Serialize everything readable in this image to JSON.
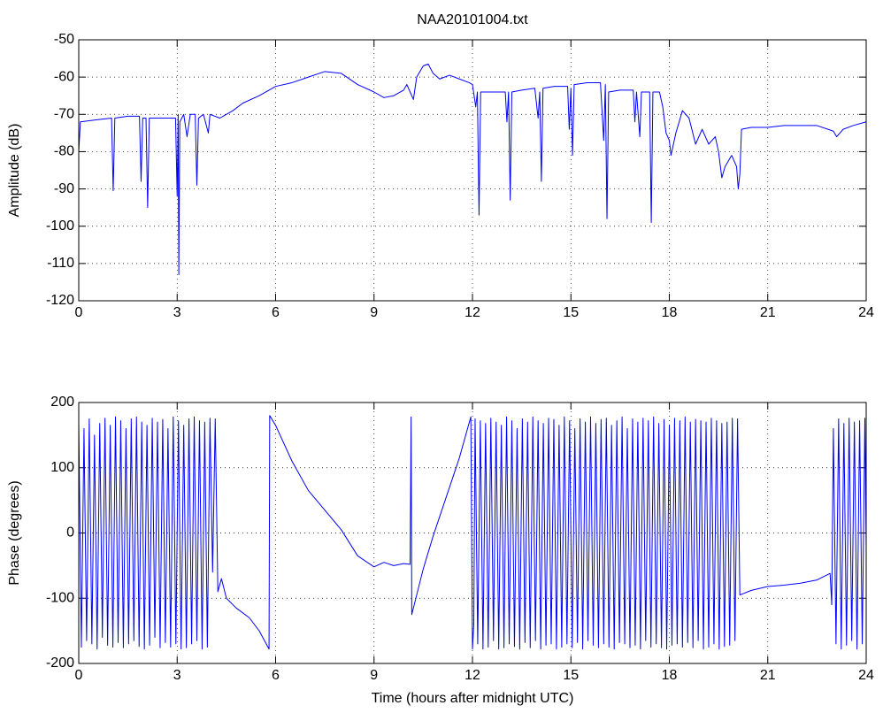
{
  "chart_data": [
    {
      "type": "line",
      "title": "NAA20101004.txt",
      "ylabel": "Amplitude (dB)",
      "color": "#0000ff",
      "grid": true,
      "xlim": [
        0,
        24
      ],
      "ylim": [
        -120,
        -50
      ],
      "xticks": [
        0,
        3,
        6,
        9,
        12,
        15,
        18,
        21,
        24
      ],
      "yticks": [
        -120,
        -110,
        -100,
        -90,
        -80,
        -70,
        -60,
        -50
      ],
      "x": [
        0,
        0.05,
        0.5,
        1.0,
        1.05,
        1.1,
        1.5,
        1.85,
        1.9,
        1.95,
        2.05,
        2.1,
        2.15,
        2.5,
        2.95,
        3.0,
        3.03,
        3.05,
        3.08,
        3.2,
        3.3,
        3.4,
        3.55,
        3.6,
        3.65,
        3.8,
        3.95,
        4.0,
        4.3,
        4.7,
        5.0,
        5.5,
        6.0,
        6.5,
        7.0,
        7.5,
        8.0,
        8.5,
        9.0,
        9.3,
        9.6,
        9.9,
        10.0,
        10.1,
        10.2,
        10.3,
        10.5,
        10.65,
        10.8,
        11.0,
        11.3,
        11.6,
        11.9,
        12.0,
        12.1,
        12.15,
        12.2,
        12.25,
        12.6,
        13.0,
        13.05,
        13.1,
        13.15,
        13.2,
        13.5,
        13.9,
        14.0,
        14.05,
        14.1,
        14.15,
        14.5,
        14.9,
        14.95,
        15.0,
        15.05,
        15.1,
        15.5,
        15.9,
        16.0,
        16.05,
        16.1,
        16.15,
        16.5,
        16.9,
        16.95,
        17.0,
        17.1,
        17.15,
        17.4,
        17.45,
        17.5,
        17.7,
        17.8,
        17.9,
        18.0,
        18.05,
        18.2,
        18.4,
        18.6,
        18.8,
        19.0,
        19.2,
        19.4,
        19.5,
        19.6,
        19.7,
        19.9,
        20.05,
        20.1,
        20.15,
        20.2,
        20.5,
        21.0,
        21.5,
        22.0,
        22.5,
        23.0,
        23.1,
        23.3,
        23.6,
        24.0
      ],
      "values": [
        -80,
        -72,
        -71.5,
        -71,
        -90.5,
        -71,
        -70.5,
        -70.5,
        -88,
        -71,
        -71,
        -95,
        -71,
        -71,
        -71,
        -92,
        -70,
        -113,
        -72,
        -70,
        -76,
        -70,
        -70,
        -89,
        -71,
        -70,
        -75,
        -70,
        -71,
        -69,
        -67,
        -65,
        -62.5,
        -61.5,
        -60,
        -58.5,
        -59,
        -62,
        -64,
        -65.5,
        -65,
        -63.5,
        -62,
        -64,
        -66,
        -60,
        -57,
        -56.5,
        -59,
        -60.5,
        -59.5,
        -60.5,
        -61.5,
        -62,
        -68,
        -64,
        -97,
        -64,
        -64,
        -64,
        -72,
        -64,
        -93,
        -64,
        -63.5,
        -63,
        -71,
        -64,
        -88,
        -63,
        -62.5,
        -62.5,
        -74,
        -63,
        -81,
        -62,
        -61.5,
        -61.5,
        -77,
        -62,
        -98,
        -64,
        -63.5,
        -63.5,
        -72,
        -64,
        -76,
        -64,
        -64,
        -99,
        -64,
        -64,
        -68,
        -75,
        -77,
        -81,
        -75,
        -69,
        -71,
        -78,
        -74,
        -78,
        -76,
        -80,
        -87,
        -84,
        -81,
        -84,
        -90,
        -86,
        -74,
        -73.5,
        -73.5,
        -73,
        -73,
        -73,
        -74.5,
        -76,
        -74,
        -73,
        -72
      ]
    },
    {
      "type": "line",
      "ylabel": "Phase (degrees)",
      "xlabel": "Time (hours after midnight UTC)",
      "color": "#0000ff",
      "grid": true,
      "xlim": [
        0,
        24
      ],
      "ylim": [
        -200,
        200
      ],
      "xticks": [
        0,
        3,
        6,
        9,
        12,
        15,
        18,
        21,
        24
      ],
      "yticks": [
        -200,
        -100,
        0,
        100,
        200
      ],
      "x": [
        0,
        0.08,
        0.16,
        0.24,
        0.32,
        0.4,
        0.48,
        0.56,
        0.64,
        0.72,
        0.8,
        0.88,
        0.96,
        1.04,
        1.12,
        1.2,
        1.28,
        1.36,
        1.44,
        1.52,
        1.6,
        1.68,
        1.76,
        1.84,
        1.92,
        2,
        2.08,
        2.16,
        2.24,
        2.32,
        2.4,
        2.48,
        2.56,
        2.64,
        2.72,
        2.8,
        2.88,
        2.96,
        3.04,
        3.12,
        3.2,
        3.28,
        3.36,
        3.44,
        3.52,
        3.6,
        3.68,
        3.76,
        3.84,
        3.92,
        4,
        4.08,
        4.16,
        4.24,
        4.35,
        4.5,
        4.8,
        5.2,
        5.5,
        5.8,
        5.82,
        6.0,
        6.5,
        7.0,
        7.5,
        8.0,
        8.5,
        9.0,
        9.3,
        9.6,
        9.9,
        10.1,
        10.13,
        10.15,
        10.3,
        10.5,
        10.8,
        11.2,
        11.6,
        11.95,
        12.0,
        12.04,
        12.08,
        12.16,
        12.24,
        12.32,
        12.4,
        12.48,
        12.56,
        12.64,
        12.72,
        12.8,
        12.88,
        12.96,
        13.04,
        13.12,
        13.2,
        13.28,
        13.36,
        13.44,
        13.52,
        13.6,
        13.68,
        13.76,
        13.84,
        13.92,
        14,
        14.08,
        14.16,
        14.24,
        14.32,
        14.4,
        14.48,
        14.56,
        14.64,
        14.72,
        14.8,
        14.88,
        14.96,
        15.04,
        15.12,
        15.2,
        15.28,
        15.36,
        15.44,
        15.52,
        15.6,
        15.68,
        15.76,
        15.84,
        15.92,
        16,
        16.08,
        16.16,
        16.24,
        16.32,
        16.4,
        16.48,
        16.56,
        16.64,
        16.72,
        16.8,
        16.88,
        16.96,
        17.04,
        17.12,
        17.2,
        17.28,
        17.36,
        17.44,
        17.52,
        17.6,
        17.68,
        17.76,
        17.84,
        17.92,
        18,
        18.08,
        18.16,
        18.24,
        18.32,
        18.4,
        18.48,
        18.56,
        18.64,
        18.72,
        18.8,
        18.88,
        18.96,
        19.04,
        19.12,
        19.2,
        19.28,
        19.36,
        19.44,
        19.52,
        19.6,
        19.68,
        19.76,
        19.84,
        19.92,
        20,
        20.08,
        20.15,
        20.5,
        21,
        21.5,
        22,
        22.5,
        22.9,
        22.95,
        23,
        23.08,
        23.16,
        23.24,
        23.32,
        23.4,
        23.48,
        23.56,
        23.64,
        23.72,
        23.8,
        23.88,
        23.96,
        24
      ],
      "values": [
        170,
        -175,
        160,
        -165,
        175,
        -170,
        150,
        -178,
        168,
        -160,
        176,
        -172,
        165,
        -175,
        178,
        -168,
        172,
        -176,
        160,
        -170,
        175,
        -165,
        178,
        -174,
        170,
        -178,
        165,
        -172,
        176,
        -160,
        170,
        -176,
        174,
        -168,
        160,
        -175,
        178,
        -170,
        172,
        -178,
        165,
        -176,
        175,
        -170,
        178,
        -165,
        172,
        -178,
        170,
        -175,
        176,
        -60,
        175,
        -90,
        -70,
        -100,
        -115,
        -130,
        -150,
        -178,
        180,
        165,
        110,
        65,
        35,
        5,
        -35,
        -52,
        -45,
        -50,
        -47,
        -48,
        178,
        -125,
        -95,
        -55,
        -5,
        55,
        115,
        178,
        -178,
        -140,
        175,
        -170,
        172,
        -178,
        168,
        -175,
        176,
        -165,
        170,
        -178,
        165,
        -176,
        178,
        -170,
        172,
        -174,
        160,
        -178,
        175,
        -168,
        170,
        -176,
        178,
        -165,
        172,
        -178,
        168,
        -172,
        176,
        -170,
        174,
        -178,
        165,
        -175,
        178,
        -170,
        172,
        -176,
        160,
        -168,
        175,
        -178,
        170,
        -165,
        178,
        -172,
        168,
        -176,
        174,
        -170,
        176,
        -175,
        165,
        -178,
        172,
        -168,
        178,
        -170,
        160,
        -176,
        175,
        -172,
        170,
        -178,
        176,
        -165,
        172,
        -175,
        178,
        -170,
        168,
        -176,
        174,
        -178,
        165,
        -172,
        176,
        -170,
        172,
        -175,
        178,
        -168,
        170,
        -176,
        174,
        -165,
        172,
        -178,
        170,
        -175,
        176,
        -170,
        172,
        -178,
        168,
        -174,
        170,
        -172,
        176,
        -165,
        175,
        -95,
        -88,
        -82,
        -80,
        -77,
        -72,
        -62,
        -110,
        160,
        -170,
        175,
        -178,
        168,
        -172,
        176,
        -165,
        170,
        -178,
        172,
        -170,
        176,
        -20
      ]
    }
  ]
}
